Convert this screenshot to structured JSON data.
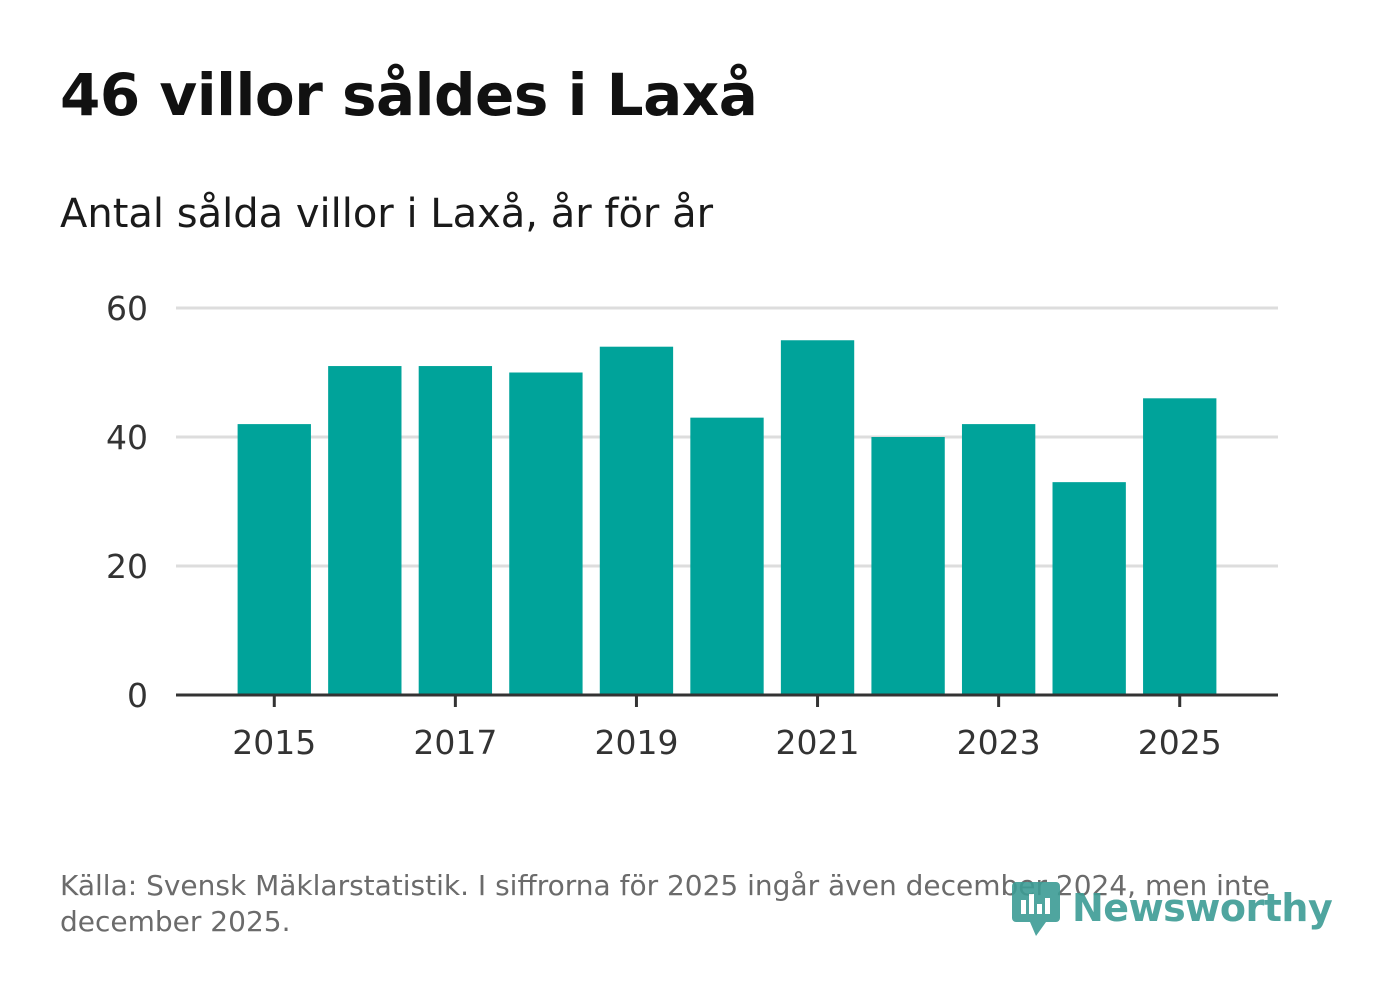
{
  "header": {
    "title": "46 villor såldes i Laxå",
    "subtitle": "Antal sålda villor i Laxå, år för år"
  },
  "footer": {
    "source": "Källa: Svensk Mäklarstatistik. I siffrorna för 2025 ingår även december 2024, men inte december 2025.",
    "logo_text": "Newsworthy"
  },
  "colors": {
    "bar": "#00a39a",
    "grid": "#dddddd",
    "axis": "#333333",
    "logo": "#3d9c95"
  },
  "chart_data": {
    "type": "bar",
    "title": "Antal sålda villor i Laxå, år för år",
    "categories": [
      2015,
      2016,
      2017,
      2018,
      2019,
      2020,
      2021,
      2022,
      2023,
      2024,
      2025
    ],
    "values": [
      42,
      51,
      51,
      50,
      54,
      43,
      55,
      40,
      42,
      33,
      46
    ],
    "xlabel": "",
    "ylabel": "",
    "ylim": [
      0,
      60
    ],
    "yticks": [
      0,
      20,
      40,
      60
    ],
    "xticks": [
      2015,
      2017,
      2019,
      2021,
      2023,
      2025
    ],
    "grid": true
  }
}
